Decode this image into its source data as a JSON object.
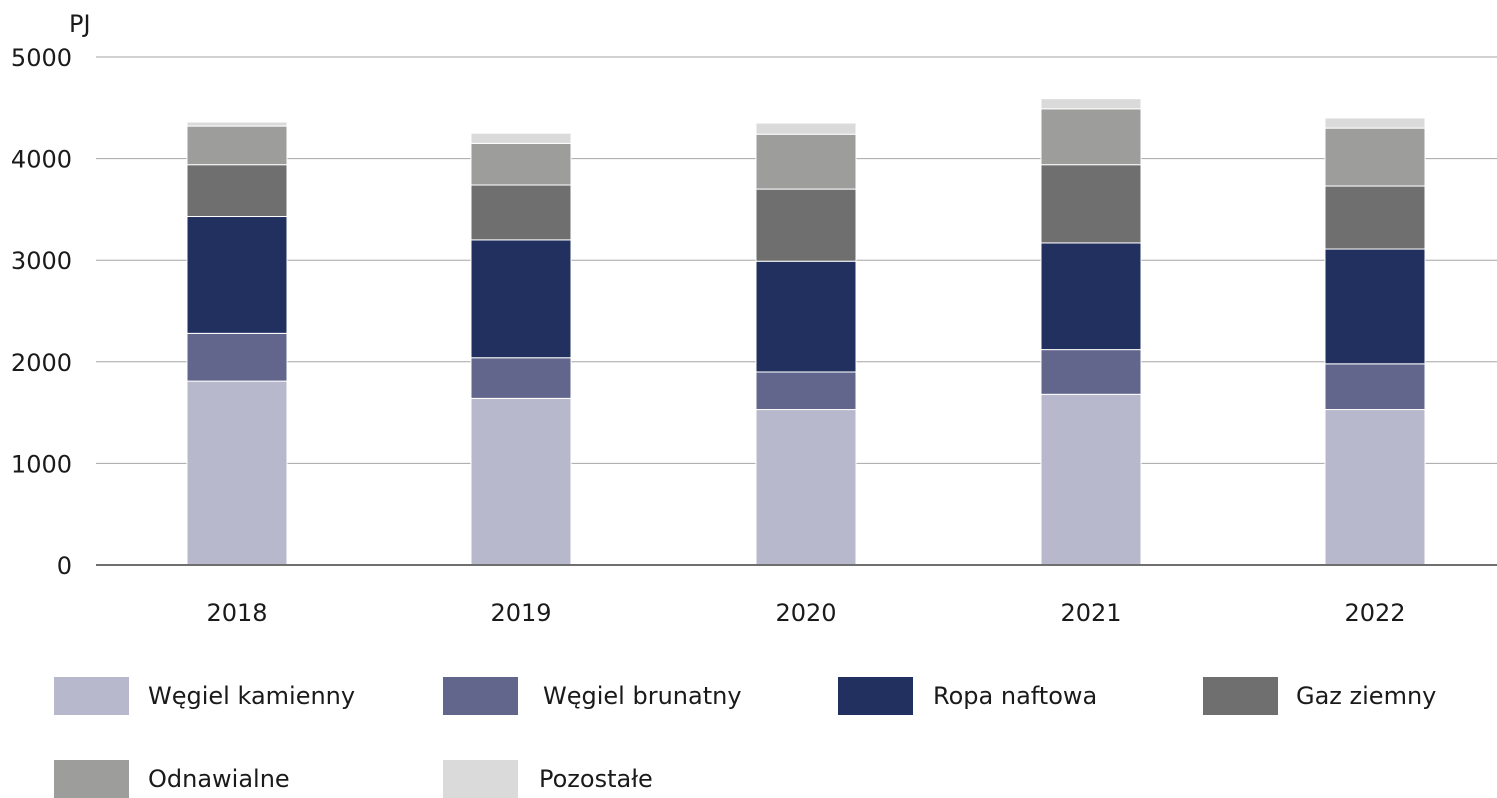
{
  "chart_data": {
    "type": "bar",
    "stacked": true,
    "unit_label": "PJ",
    "categories": [
      "2018",
      "2019",
      "2020",
      "2021",
      "2022"
    ],
    "ylim": [
      0,
      5000
    ],
    "yticks": [
      "0",
      "1000",
      "2000",
      "3000",
      "4000",
      "5000"
    ],
    "grid": true,
    "legend_position": "bottom",
    "series": [
      {
        "name": "Węgiel kamienny",
        "color": "#b7b8cc",
        "values": [
          1810,
          1640,
          1530,
          1680,
          1530
        ]
      },
      {
        "name": "Węgiel brunatny",
        "color": "#62668c",
        "values": [
          470,
          400,
          370,
          440,
          450
        ]
      },
      {
        "name": "Ropa naftowa",
        "color": "#21305e",
        "values": [
          1150,
          1160,
          1090,
          1050,
          1130
        ]
      },
      {
        "name": "Gaz ziemny",
        "color": "#6f6f6f",
        "values": [
          510,
          540,
          710,
          770,
          620
        ]
      },
      {
        "name": "Odnawialne",
        "color": "#9d9d9c",
        "values": [
          380,
          410,
          540,
          550,
          570
        ]
      },
      {
        "name": "Pozostałe",
        "color": "#dadada",
        "values": [
          40,
          100,
          110,
          100,
          100
        ]
      }
    ]
  }
}
